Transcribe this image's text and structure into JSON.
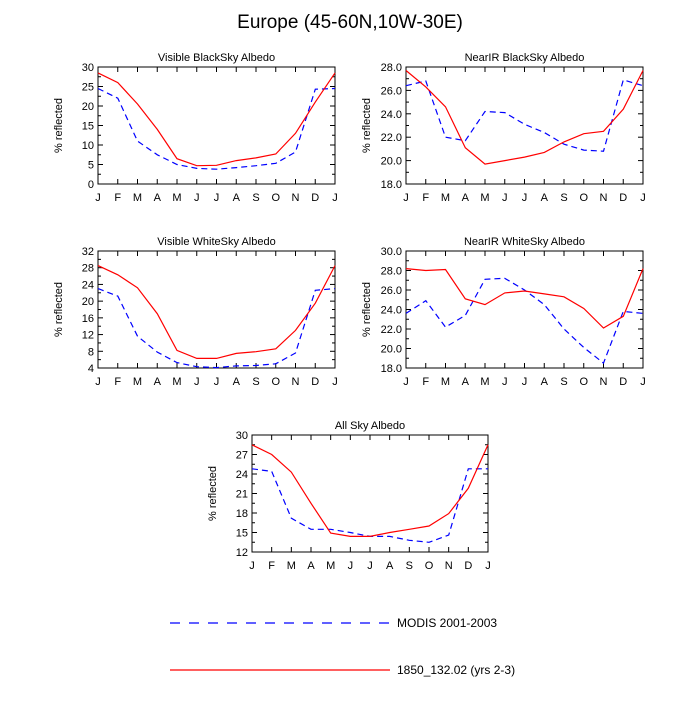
{
  "figure": {
    "title": "Europe (45-60N,10W-30E)"
  },
  "legend": [
    {
      "label": "MODIS 2001-2003",
      "color": "#0000ff",
      "dash": "dashed"
    },
    {
      "label": "1850_132.02 (yrs 2-3)",
      "color": "#ff0000",
      "dash": "solid"
    }
  ],
  "chart_data": [
    {
      "type": "line",
      "title": "Visible BlackSky Albedo",
      "xlabel": "",
      "ylabel": "% reflected",
      "categories": [
        "J",
        "F",
        "M",
        "A",
        "M",
        "J",
        "J",
        "A",
        "S",
        "O",
        "N",
        "D",
        "J"
      ],
      "ylim": [
        0,
        30
      ],
      "yticks": [
        0,
        5,
        10,
        15,
        20,
        25,
        30
      ],
      "ytick_labels": [
        "0",
        "5",
        "10",
        "15",
        "20",
        "25",
        "30"
      ],
      "series": [
        {
          "name": "MODIS 2001-2003",
          "values": [
            24.5,
            22.0,
            11.0,
            7.5,
            5.0,
            4.0,
            3.8,
            4.2,
            4.7,
            5.3,
            8.2,
            24.3,
            24.5
          ]
        },
        {
          "name": "1850_132.02 (yrs 2-3)",
          "values": [
            28.5,
            26.0,
            20.5,
            14.0,
            6.5,
            4.7,
            4.8,
            6.0,
            6.7,
            7.7,
            13.0,
            21.0,
            28.5
          ]
        }
      ]
    },
    {
      "type": "line",
      "title": "NearIR BlackSky Albedo",
      "xlabel": "",
      "ylabel": "% reflected",
      "categories": [
        "J",
        "F",
        "M",
        "A",
        "M",
        "J",
        "J",
        "A",
        "S",
        "O",
        "N",
        "D",
        "J"
      ],
      "ylim": [
        18,
        28
      ],
      "yticks": [
        18,
        20,
        22,
        24,
        26,
        28
      ],
      "ytick_labels": [
        "18.0",
        "20.0",
        "22.0",
        "24.0",
        "26.0",
        "28.0"
      ],
      "series": [
        {
          "name": "MODIS 2001-2003",
          "values": [
            26.4,
            26.8,
            22.0,
            21.7,
            24.2,
            24.1,
            23.1,
            22.4,
            21.4,
            20.9,
            20.8,
            26.9,
            26.4
          ]
        },
        {
          "name": "1850_132.02 (yrs 2-3)",
          "values": [
            27.7,
            26.3,
            24.6,
            21.1,
            19.7,
            20.0,
            20.3,
            20.7,
            21.6,
            22.3,
            22.5,
            24.4,
            27.7
          ]
        }
      ]
    },
    {
      "type": "line",
      "title": "Visible WhiteSky Albedo",
      "xlabel": "",
      "ylabel": "% reflected",
      "categories": [
        "J",
        "F",
        "M",
        "A",
        "M",
        "J",
        "J",
        "A",
        "S",
        "O",
        "N",
        "D",
        "J"
      ],
      "ylim": [
        4,
        32
      ],
      "yticks": [
        4,
        8,
        12,
        16,
        20,
        24,
        28,
        32
      ],
      "ytick_labels": [
        "4",
        "8",
        "12",
        "16",
        "20",
        "24",
        "28",
        "32"
      ],
      "series": [
        {
          "name": "MODIS 2001-2003",
          "values": [
            23.0,
            21.2,
            11.6,
            7.8,
            5.3,
            4.3,
            4.1,
            4.5,
            4.6,
            5.0,
            7.6,
            22.6,
            23.0
          ]
        },
        {
          "name": "1850_132.02 (yrs 2-3)",
          "values": [
            28.5,
            26.3,
            23.2,
            17.0,
            8.2,
            6.3,
            6.3,
            7.5,
            7.9,
            8.6,
            13.0,
            19.5,
            28.5
          ]
        }
      ]
    },
    {
      "type": "line",
      "title": "NearIR WhiteSky Albedo",
      "xlabel": "",
      "ylabel": "% reflected",
      "categories": [
        "J",
        "F",
        "M",
        "A",
        "M",
        "J",
        "J",
        "A",
        "S",
        "O",
        "N",
        "D",
        "J"
      ],
      "ylim": [
        18,
        30
      ],
      "yticks": [
        18,
        20,
        22,
        24,
        26,
        28,
        30
      ],
      "ytick_labels": [
        "18.0",
        "20.0",
        "22.0",
        "24.0",
        "26.0",
        "28.0",
        "30.0"
      ],
      "series": [
        {
          "name": "MODIS 2001-2003",
          "values": [
            23.6,
            24.9,
            22.2,
            23.4,
            27.1,
            27.2,
            26.0,
            24.5,
            22.0,
            20.1,
            18.5,
            23.8,
            23.6
          ]
        },
        {
          "name": "1850_132.02 (yrs 2-3)",
          "values": [
            28.2,
            28.0,
            28.1,
            25.1,
            24.5,
            25.7,
            25.9,
            25.6,
            25.3,
            24.1,
            22.1,
            23.3,
            28.2
          ]
        }
      ]
    },
    {
      "type": "line",
      "title": "All Sky Albedo",
      "xlabel": "",
      "ylabel": "% reflected",
      "categories": [
        "J",
        "F",
        "M",
        "A",
        "M",
        "J",
        "J",
        "A",
        "S",
        "O",
        "N",
        "D",
        "J"
      ],
      "ylim": [
        12,
        30
      ],
      "yticks": [
        12,
        15,
        18,
        21,
        24,
        27,
        30
      ],
      "ytick_labels": [
        "12",
        "15",
        "18",
        "21",
        "24",
        "27",
        "30"
      ],
      "series": [
        {
          "name": "MODIS 2001-2003",
          "values": [
            24.8,
            24.4,
            17.2,
            15.5,
            15.5,
            15.0,
            14.4,
            14.4,
            13.8,
            13.5,
            14.6,
            24.8,
            24.8
          ]
        },
        {
          "name": "1850_132.02 (yrs 2-3)",
          "values": [
            28.5,
            27.0,
            24.3,
            19.5,
            14.9,
            14.4,
            14.4,
            15.0,
            15.5,
            16.0,
            17.9,
            21.8,
            28.5
          ]
        }
      ]
    }
  ]
}
